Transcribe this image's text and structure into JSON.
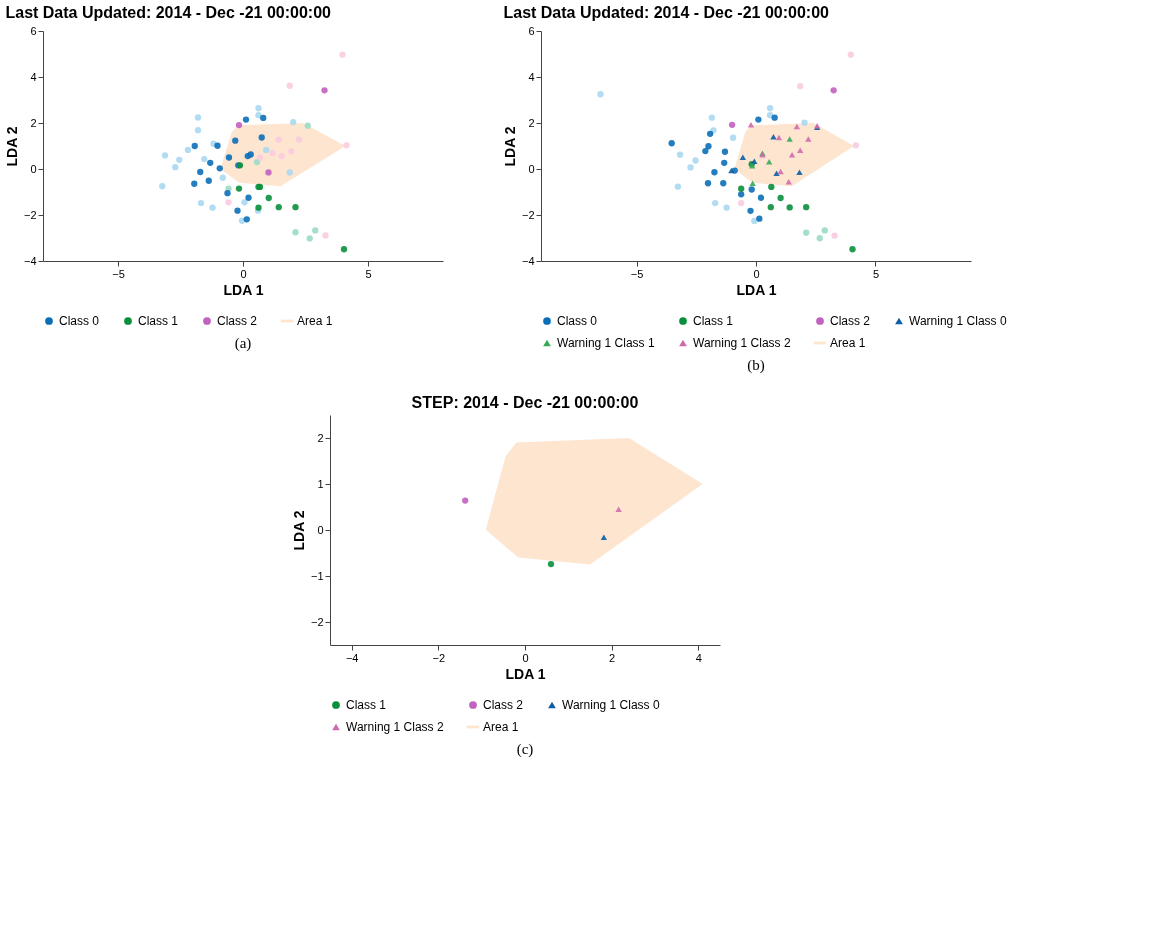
{
  "chart_data": [
    {
      "type": "scatter",
      "title": "Last Data Updated: 2014 - Dec -21 00:00:00",
      "xlabel": "LDA 1",
      "ylabel": "LDA 2",
      "xlim": [
        -8,
        8
      ],
      "ylim": [
        -4,
        6
      ],
      "xticks": [
        -5,
        0,
        5
      ],
      "yticks": [
        -4,
        -2,
        0,
        2,
        4,
        6
      ],
      "grid": false,
      "legend": "bottom",
      "annotations": [
        "(a)"
      ],
      "series": [
        {
          "type": "area",
          "name": "Area 1",
          "color": "#fde5d0",
          "x": [
            -0.9,
            -0.85,
            -0.45,
            -0.2,
            2.4,
            4.1,
            1.5,
            -0.15
          ],
          "values": [
            0,
            0.2,
            1.6,
            1.9,
            2.0,
            1.0,
            -0.75,
            -0.6
          ]
        },
        {
          "color": "#a9d8f0",
          "marker": "circle",
          "x": [
            -1.8,
            -1.8,
            0.62,
            0.62,
            -3.23,
            -3.12,
            -2.71,
            -2.55,
            -2.2,
            -1.68,
            -1.22,
            -0.04,
            2.01,
            -1.18,
            -1.55,
            -0.81,
            0.06,
            1.87,
            0.93,
            0.6
          ],
          "values": [
            2.24,
            1.69,
            2.64,
            2.34,
            -0.75,
            0.59,
            0.08,
            0.4,
            0.83,
            -1.48,
            -1.68,
            -2.25,
            2.04,
            1.1,
            0.43,
            -0.38,
            -1.45,
            -0.15,
            0.83,
            -1.81
          ]
        },
        {
          "color": "#9adcc6",
          "marker": "circle",
          "x": [
            2.67,
            2.1,
            2.89,
            2.59,
            0.56,
            -0.58
          ],
          "values": [
            -3.02,
            -2.75,
            -2.67,
            1.88,
            0.3,
            -0.85
          ]
        },
        {
          "color": "#f9cbe0",
          "marker": "circle",
          "x": [
            3.98,
            1.87,
            4.14,
            3.3,
            2.24,
            1.43,
            1.55,
            1.93,
            1.18,
            -0.58,
            0.68
          ],
          "values": [
            4.97,
            3.62,
            1.03,
            -2.89,
            1.28,
            1.28,
            0.56,
            0.77,
            0.7,
            -1.45,
            0.5
          ]
        },
        {
          "name": "Class 0",
          "color": "#0b6fb8",
          "marker": "circle",
          "x": [
            0.12,
            0.81,
            -1.93,
            -1.31,
            -1.71,
            -1.37,
            -0.56,
            -0.93,
            -0.19,
            0.19,
            0.31,
            -0.62,
            0.22,
            -0.22,
            0.15,
            -1.95,
            0.75,
            -0.31,
            -1.02
          ],
          "values": [
            2.15,
            2.22,
            1.0,
            0.27,
            -0.13,
            -0.51,
            0.5,
            0.03,
            0.16,
            0.56,
            0.63,
            -1.05,
            -1.25,
            -1.81,
            -2.19,
            -0.64,
            1.37,
            1.23,
            1.01
          ]
        },
        {
          "name": "Class 1",
          "color": "#0a8f3c",
          "marker": "circle",
          "x": [
            4.04,
            2.1,
            1.43,
            1.03,
            0.62,
            0.62,
            -0.16,
            -0.12,
            0.68
          ],
          "values": [
            -3.49,
            -1.66,
            -1.66,
            -1.26,
            -1.68,
            -0.78,
            -0.85,
            0.16,
            -0.78
          ]
        },
        {
          "name": "Class 2",
          "color": "#c161c0",
          "marker": "circle",
          "x": [
            3.26,
            -0.16,
            1.02
          ],
          "values": [
            3.42,
            1.91,
            -0.15
          ]
        }
      ]
    },
    {
      "type": "scatter",
      "title": "Last Data Updated: 2014 - Dec -21 00:00:00",
      "xlabel": "LDA 1",
      "ylabel": "LDA 2",
      "xlim": [
        -9,
        9
      ],
      "ylim": [
        -4,
        6
      ],
      "xticks": [
        -5,
        0,
        5
      ],
      "yticks": [
        -4,
        -2,
        0,
        2,
        4,
        6
      ],
      "grid": false,
      "legend": "bottom",
      "annotations": [
        "(b)"
      ],
      "series": [
        {
          "type": "area",
          "name": "Area 1",
          "color": "#fde5d0",
          "x": [
            -0.9,
            -0.85,
            -0.45,
            -0.2,
            2.4,
            4.1,
            1.5,
            -0.15
          ],
          "values": [
            0,
            0.2,
            1.6,
            1.9,
            2.0,
            1.0,
            -0.75,
            -0.6
          ]
        },
        {
          "color": "#a9d8f0",
          "marker": "circle",
          "x": [
            -6.51,
            -1.85,
            0.59,
            0.59,
            -3.27,
            -3.18,
            -2.74,
            -2.53,
            -1.71,
            -1.23,
            -0.07,
            2.03,
            -0.96,
            -1.78
          ],
          "values": [
            3.25,
            2.23,
            2.64,
            2.34,
            -0.77,
            0.62,
            0.07,
            0.37,
            -1.48,
            -1.68,
            -2.26,
            2.01,
            1.36,
            1.68
          ]
        },
        {
          "color": "#9adcc6",
          "marker": "circle",
          "x": [
            2.67,
            2.1,
            2.88
          ],
          "values": [
            -3.01,
            -2.77,
            -2.67
          ]
        },
        {
          "color": "#f9cbe0",
          "marker": "circle",
          "x": [
            3.97,
            1.85,
            4.18,
            3.29,
            -0.62
          ],
          "values": [
            4.97,
            3.6,
            1.03,
            -2.9,
            -1.48
          ]
        },
        {
          "name": "Class 0",
          "color": "#0b6fb8",
          "marker": "circle",
          "x": [
            0.1,
            0.78,
            -1.99,
            -1.33,
            -1.74,
            -1.37,
            -2.01,
            -0.23,
            0.14,
            0.21,
            -0.62,
            -0.18,
            -1.3,
            -2.12,
            -1.92,
            -3.53,
            -0.89
          ],
          "values": [
            2.15,
            2.23,
            0.99,
            0.27,
            -0.14,
            -0.62,
            -0.62,
            -1.82,
            -2.16,
            -1.25,
            -1.1,
            -0.89,
            0.75,
            0.78,
            1.53,
            1.12,
            -0.07
          ]
        },
        {
          "name": "Class 1",
          "color": "#0a8f3c",
          "marker": "circle",
          "x": [
            4.04,
            2.1,
            1.41,
            1.03,
            0.62,
            0.64,
            -0.62,
            -0.18
          ],
          "values": [
            -3.49,
            -1.66,
            -1.67,
            -1.26,
            -1.66,
            -0.78,
            -0.86,
            0.21
          ]
        },
        {
          "name": "Class 2",
          "color": "#c161c0",
          "marker": "circle",
          "x": [
            3.25,
            -1.0
          ],
          "values": [
            3.42,
            1.92
          ]
        },
        {
          "name": "Warning 1 Class 0",
          "color": "#0b5fa5",
          "marker": "triangle",
          "x": [
            -0.55,
            0.73,
            0.86,
            1.82,
            2.56,
            -0.07,
            -1.03
          ],
          "values": [
            0.51,
            1.4,
            -0.18,
            -0.14,
            1.81,
            0.34,
            -0.07
          ]
        },
        {
          "name": "Warning 1 Class 1",
          "color": "#3aaa5a",
          "marker": "triangle",
          "x": [
            1.41,
            0.55,
            -0.16,
            0.27,
            -0.14
          ],
          "values": [
            1.3,
            0.32,
            0.14,
            0.68,
            -0.62
          ]
        },
        {
          "name": "Warning 1 Class 2",
          "color": "#d06aae",
          "marker": "triangle",
          "x": [
            2.56,
            -0.21,
            1.03,
            0.27,
            1.51,
            2.19,
            1.85,
            0.96,
            1.71,
            1.37
          ],
          "values": [
            1.88,
            1.92,
            -0.11,
            0.62,
            0.62,
            1.3,
            0.82,
            1.37,
            1.85,
            -0.55
          ]
        }
      ]
    },
    {
      "type": "scatter",
      "title": "STEP: 2014 - Dec -21 00:00:00",
      "xlabel": "LDA 1",
      "ylabel": "LDA 2",
      "xlim": [
        -4.5,
        4.5
      ],
      "ylim": [
        -2.5,
        2.5
      ],
      "xticks": [
        -4,
        -2,
        0,
        2,
        4
      ],
      "yticks": [
        -2,
        -1,
        0,
        1,
        2
      ],
      "grid": false,
      "legend": "bottom",
      "annotations": [
        "(c)"
      ],
      "series": [
        {
          "type": "area",
          "name": "Area 1",
          "color": "#fde5d0",
          "x": [
            -0.9,
            -0.85,
            -0.45,
            -0.2,
            2.4,
            4.1,
            1.5,
            -0.15
          ],
          "values": [
            0,
            0.2,
            1.6,
            1.9,
            2.0,
            1.0,
            -0.75,
            -0.6
          ]
        },
        {
          "name": "Class 1",
          "color": "#0a8f3c",
          "marker": "circle",
          "x": [
            0.6
          ],
          "values": [
            -0.74
          ]
        },
        {
          "name": "Class 2",
          "color": "#c161c0",
          "marker": "circle",
          "x": [
            -1.38
          ],
          "values": [
            0.64
          ]
        },
        {
          "name": "Warning 1 Class 0",
          "color": "#0b5fa5",
          "marker": "triangle",
          "x": [
            1.82
          ],
          "values": [
            -0.16
          ]
        },
        {
          "name": "Warning 1 Class 2",
          "color": "#d06aae",
          "marker": "triangle",
          "x": [
            2.16
          ],
          "values": [
            0.45
          ]
        }
      ]
    }
  ]
}
